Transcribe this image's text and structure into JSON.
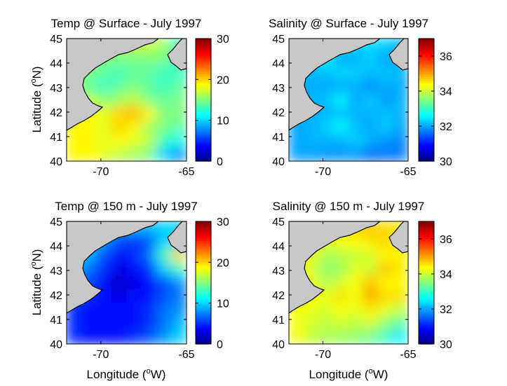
{
  "chart_data": [
    {
      "type": "heatmap",
      "title": "Temp @ Surface - July 1997",
      "ylabel": "Latitude (°N)",
      "xlabel": "",
      "xlim": [
        -72,
        -65
      ],
      "ylim": [
        40,
        45
      ],
      "x_ticks": [
        "-70",
        "-65"
      ],
      "y_ticks": [
        "40",
        "41",
        "42",
        "43",
        "44",
        "45"
      ],
      "colorbar": {
        "range": [
          0,
          30
        ],
        "ticks": [
          "0",
          "10",
          "20",
          "30"
        ],
        "colormap": "jet"
      },
      "field": [
        [
          18,
          18,
          16,
          16,
          17,
          17,
          16,
          13
        ],
        [
          16,
          16,
          15,
          15,
          15,
          15,
          15,
          13
        ],
        [
          15,
          15,
          14,
          13,
          14,
          14,
          13,
          13
        ],
        [
          15,
          14,
          13,
          14,
          15,
          14,
          13,
          14
        ],
        [
          17,
          17,
          15,
          16,
          17,
          15,
          14,
          15
        ],
        [
          18,
          19,
          18,
          20,
          21,
          19,
          15,
          15
        ],
        [
          19,
          19,
          18,
          20,
          19,
          16,
          15,
          14
        ],
        [
          19,
          19,
          18,
          19,
          18,
          17,
          13,
          12
        ],
        [
          19,
          19,
          18,
          17,
          16,
          15,
          10,
          8
        ]
      ]
    },
    {
      "type": "heatmap",
      "title": "Salinity @ Surface - July 1997",
      "ylabel": "",
      "xlabel": "",
      "xlim": [
        -72,
        -65
      ],
      "ylim": [
        40,
        45
      ],
      "x_ticks": [
        "-70",
        "-65"
      ],
      "y_ticks": [
        "40",
        "41",
        "42",
        "43",
        "44",
        "45"
      ],
      "colorbar": {
        "range": [
          30,
          37
        ],
        "ticks": [
          "30",
          "32",
          "34",
          "36"
        ],
        "colormap": "jet"
      },
      "field": [
        [
          32.3,
          32.5,
          32.6,
          32.3,
          32.3,
          32.4,
          32.3,
          32.1
        ],
        [
          32.1,
          32.3,
          32.6,
          32.0,
          32.1,
          32.3,
          32.0,
          32.0
        ],
        [
          32.0,
          32.1,
          32.2,
          32.4,
          32.3,
          32.2,
          32.2,
          32.2
        ],
        [
          32.0,
          32.1,
          32.0,
          32.0,
          32.1,
          31.8,
          32.1,
          32.0
        ],
        [
          32.0,
          32.1,
          32.2,
          32.6,
          32.0,
          32.3,
          31.9,
          32.1
        ],
        [
          32.0,
          32.1,
          32.1,
          32.2,
          32.1,
          32.1,
          32.2,
          32.1
        ],
        [
          32.0,
          32.1,
          32.3,
          32.6,
          32.2,
          32.0,
          32.3,
          32.0
        ],
        [
          32.0,
          32.1,
          32.1,
          32.1,
          32.3,
          32.1,
          31.9,
          31.8
        ],
        [
          32.0,
          32.0,
          31.9,
          31.9,
          31.9,
          31.6,
          31.7,
          31.7
        ]
      ]
    },
    {
      "type": "heatmap",
      "title": "Temp @ 150 m - July 1997",
      "ylabel": "Latitude (°N)",
      "xlabel": "",
      "xlim": [
        -72,
        -65
      ],
      "ylim": [
        40,
        45
      ],
      "x_ticks": [
        "-70",
        "-65"
      ],
      "y_ticks": [
        "40",
        "41",
        "42",
        "43",
        "44",
        "45"
      ],
      "colorbar": {
        "range": [
          0,
          30
        ],
        "ticks": [
          "0",
          "10",
          "20",
          "30"
        ],
        "colormap": "jet"
      },
      "field": [
        [
          12,
          11,
          10,
          8,
          9,
          9,
          10,
          10
        ],
        [
          11,
          10,
          8,
          6,
          5,
          6,
          10,
          10
        ],
        [
          10,
          9,
          6,
          4,
          5,
          7,
          13,
          20
        ],
        [
          9,
          7,
          5,
          3,
          4,
          5,
          10,
          13
        ],
        [
          8,
          6,
          4,
          2,
          3,
          4,
          6,
          8
        ],
        [
          6,
          5,
          4,
          3,
          4,
          4,
          6,
          7
        ],
        [
          5,
          4,
          4,
          4,
          4,
          5,
          7,
          8
        ],
        [
          5,
          4,
          4,
          4,
          4,
          5,
          7,
          9
        ],
        [
          5,
          4,
          4,
          4,
          5,
          6,
          8,
          10
        ]
      ]
    },
    {
      "type": "heatmap",
      "title": "Salinity @ 150 m - July 1997",
      "ylabel": "",
      "xlabel": "",
      "xlim": [
        -72,
        -65
      ],
      "ylim": [
        40,
        45
      ],
      "x_ticks": [
        "-70",
        "-65"
      ],
      "y_ticks": [
        "40",
        "41",
        "42",
        "43",
        "44",
        "45"
      ],
      "colorbar": {
        "range": [
          30,
          37
        ],
        "ticks": [
          "30",
          "32",
          "34",
          "36"
        ],
        "colormap": "jet"
      },
      "field": [
        [
          35.4,
          35.0,
          34.7,
          34.6,
          34.7,
          34.8,
          34.6,
          34.6
        ],
        [
          35.2,
          34.7,
          34.2,
          34.3,
          34.4,
          34.5,
          34.7,
          34.4
        ],
        [
          34.7,
          34.2,
          33.8,
          33.9,
          34.0,
          34.1,
          34.4,
          34.5
        ],
        [
          34.5,
          34.1,
          33.6,
          33.7,
          34.2,
          34.0,
          34.8,
          34.5
        ],
        [
          34.6,
          34.3,
          33.8,
          34.1,
          34.3,
          34.8,
          34.4,
          34.4
        ],
        [
          34.7,
          34.4,
          34.2,
          34.6,
          34.3,
          35.0,
          34.6,
          34.6
        ],
        [
          34.3,
          34.2,
          34.1,
          34.3,
          34.2,
          34.5,
          34.2,
          33.9
        ],
        [
          34.3,
          34.1,
          33.9,
          34.1,
          33.9,
          34.1,
          33.6,
          33.3
        ],
        [
          34.3,
          34.0,
          33.8,
          33.7,
          33.6,
          33.4,
          33.0,
          32.5
        ]
      ]
    }
  ],
  "shared_xlabel": "Longitude (°W)",
  "colors": {
    "land": "#c8c8c8",
    "coast": "#000000",
    "axes": "#000000",
    "background": "#ffffff"
  }
}
